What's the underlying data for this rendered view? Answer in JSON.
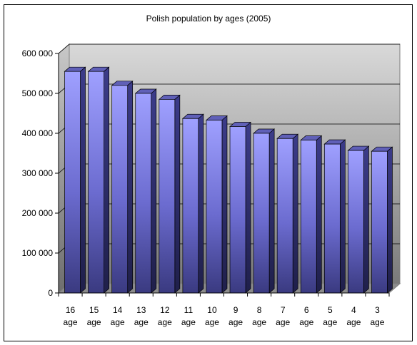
{
  "chart_data": {
    "type": "bar",
    "title": "Polish population by ages (2005)",
    "categories": [
      "16 age",
      "15 age",
      "14 age",
      "13 age",
      "12 age",
      "11 age",
      "10 age",
      "9 age",
      "8 age",
      "7 age",
      "6 age",
      "5 age",
      "4 age",
      "3 age"
    ],
    "values": [
      555000,
      555000,
      520000,
      500000,
      485000,
      437000,
      433000,
      417000,
      400000,
      387000,
      383000,
      373000,
      357000,
      355000
    ],
    "ylim": [
      0,
      600000
    ],
    "yticks": [
      0,
      100000,
      200000,
      300000,
      400000,
      500000,
      600000
    ],
    "ytick_labels": [
      "0",
      "100 000",
      "200 000",
      "300 000",
      "400 000",
      "500 000",
      "600 000"
    ],
    "grid": true,
    "legend": false,
    "three_d": true,
    "colors": {
      "bar_light": "#9999ff",
      "bar_dark": "#2e2e6b",
      "wall_light": "#d9d9d9",
      "wall_dark": "#808080"
    }
  }
}
